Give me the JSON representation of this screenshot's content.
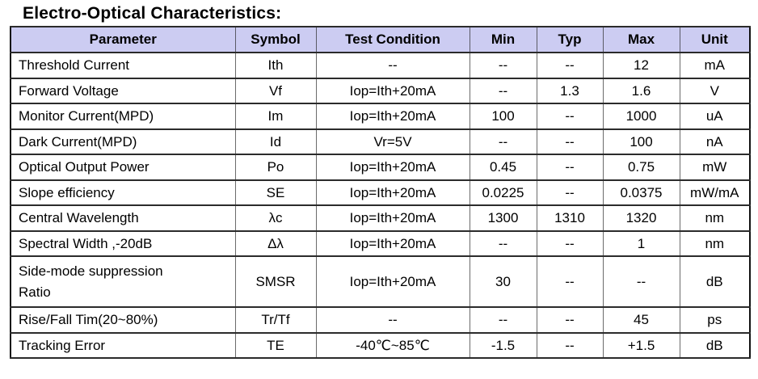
{
  "page": {
    "title": "Electro-Optical Characteristics:"
  },
  "colors": {
    "header_bg": "#ccccf2",
    "grid_line": "#2b2b2b",
    "outer_border": "#111111",
    "text": "#000000"
  },
  "table": {
    "columns": [
      "Parameter",
      "Symbol",
      "Test Condition",
      "Min",
      "Typ",
      "Max",
      "Unit"
    ],
    "rows": [
      {
        "cells": [
          "Threshold Current",
          "Ith",
          "--",
          "--",
          "--",
          "12",
          "mA"
        ]
      },
      {
        "cells": [
          "Forward Voltage",
          "Vf",
          "Iop=Ith+20mA",
          "--",
          "1.3",
          "1.6",
          "V"
        ]
      },
      {
        "cells": [
          "Monitor Current(MPD)",
          "Im",
          "Iop=Ith+20mA",
          "100",
          "--",
          "1000",
          "uA"
        ]
      },
      {
        "cells": [
          "Dark Current(MPD)",
          "Id",
          "Vr=5V",
          "--",
          "--",
          "100",
          "nA"
        ]
      },
      {
        "cells": [
          "Optical Output Power",
          "Po",
          "Iop=Ith+20mA",
          "0.45",
          "--",
          "0.75",
          "mW"
        ]
      },
      {
        "cells": [
          "Slope efficiency",
          "SE",
          "Iop=Ith+20mA",
          "0.0225",
          "--",
          "0.0375",
          "mW/mA"
        ]
      },
      {
        "cells": [
          "Central Wavelength",
          "λc",
          "Iop=Ith+20mA",
          "1300",
          "1310",
          "1320",
          "nm"
        ]
      },
      {
        "cells": [
          "Spectral Width ,-20dB",
          "Δλ",
          "Iop=Ith+20mA",
          "--",
          "--",
          "1",
          "nm"
        ]
      },
      {
        "cells": [
          "Side-mode suppression\nRatio",
          "SMSR",
          "Iop=Ith+20mA",
          "30",
          "--",
          "--",
          "dB"
        ]
      },
      {
        "cells": [
          "Rise/Fall Tim(20~80%)",
          "Tr/Tf",
          "--",
          "--",
          "--",
          "45",
          "ps"
        ]
      },
      {
        "cells": [
          "Tracking Error",
          "TE",
          "-40℃~85℃",
          "-1.5",
          "--",
          "+1.5",
          "dB"
        ]
      }
    ]
  }
}
